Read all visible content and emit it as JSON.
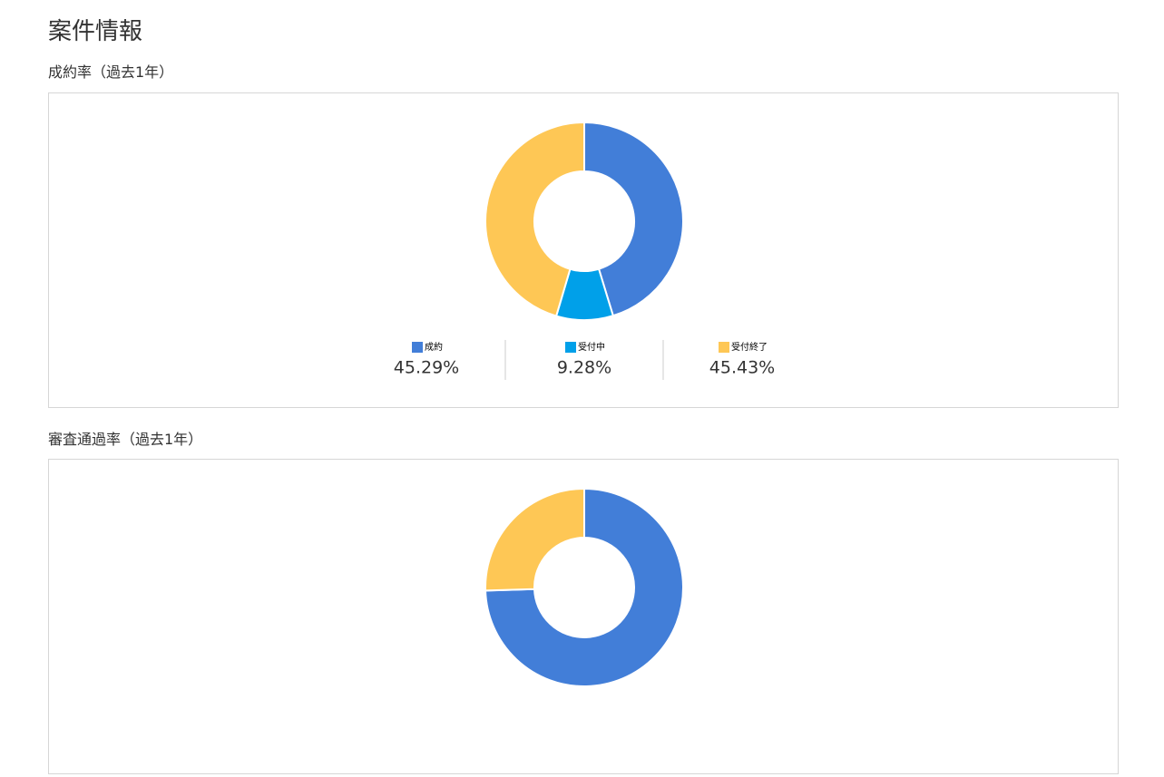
{
  "page": {
    "title": "案件情報"
  },
  "chart_data": [
    {
      "type": "pie",
      "title": "成約率（過去1年）",
      "categories": [
        "成約",
        "受付中",
        "受付終了"
      ],
      "values": [
        45.29,
        9.28,
        45.43
      ],
      "value_labels": [
        "45.29%",
        "9.28%",
        "45.43%"
      ],
      "colors": [
        "#427ed8",
        "#00a0e9",
        "#fec755"
      ]
    },
    {
      "type": "pie",
      "title": "審査通過率（過去1年）",
      "values": [
        74.5,
        25.5
      ],
      "colors": [
        "#427ed8",
        "#fec755"
      ]
    }
  ]
}
